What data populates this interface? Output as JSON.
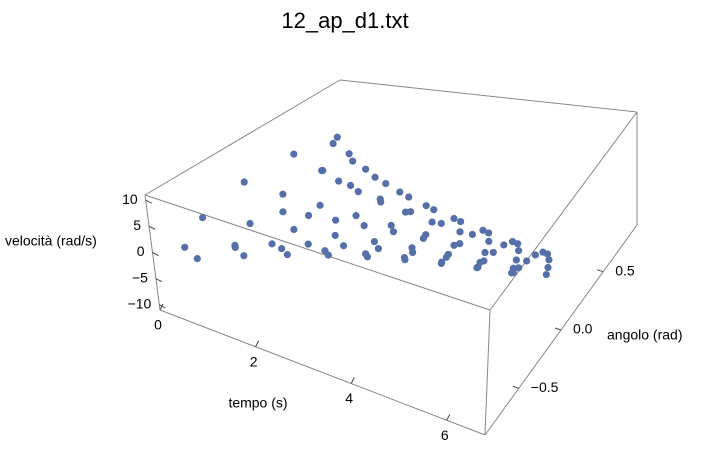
{
  "chart_data": {
    "type": "scatter3d",
    "title": "12_ap_d1.txt",
    "x_label": "tempo (s)",
    "y_label": "angolo (rad)",
    "z_label": "velocità (rad/s)",
    "color": "#5570a8",
    "xlim": [
      0,
      6.8
    ],
    "ylim": [
      -0.9,
      0.9
    ],
    "zlim": [
      -11,
      11
    ],
    "xticks": [
      0,
      2,
      4,
      6
    ],
    "yticks": [
      {
        "value": -0.5,
        "label": "−0.5"
      },
      {
        "value": 0,
        "label": "0.0"
      },
      0.5
    ],
    "zticks": [
      {
        "value": -10,
        "label": "−10"
      },
      {
        "value": -5,
        "label": "−5"
      },
      0,
      5,
      10
    ],
    "x": [
      0,
      0.07,
      0.14,
      0.21,
      0.28,
      0.35,
      0.42,
      0.49,
      0.56,
      0.63,
      0.7,
      0.77,
      0.84,
      0.91,
      0.98,
      1.05,
      1.12,
      1.19,
      1.26,
      1.33,
      1.4,
      1.47,
      1.54,
      1.61,
      1.68,
      1.75,
      1.82,
      1.89,
      1.96,
      2.03,
      2.1,
      2.17,
      2.24,
      2.31,
      2.38,
      2.45,
      2.52,
      2.59,
      2.66,
      2.73,
      2.8,
      2.87,
      2.94,
      3.01,
      3.08,
      3.15,
      3.22,
      3.29,
      3.36,
      3.43,
      3.5,
      3.57,
      3.64,
      3.71,
      3.78,
      3.85,
      3.92,
      3.99,
      4.06,
      4.13,
      4.2,
      4.27,
      4.34,
      4.41,
      4.48,
      4.55,
      4.62,
      4.69,
      4.76,
      4.83,
      4.9,
      4.97,
      5.04,
      5.11,
      5.18,
      5.25,
      5.32,
      5.39,
      5.46,
      5.53,
      5.6,
      5.67,
      5.74,
      5.81,
      5.88,
      5.95,
      6.02,
      6.09,
      6.16,
      6.23,
      6.3,
      6.37,
      6.44,
      6.51
    ],
    "y": [
      0.85,
      0.671,
      0.25,
      -0.244,
      -0.625,
      -0.755,
      -0.596,
      -0.222,
      0.217,
      0.555,
      0.67,
      0.529,
      0.197,
      -0.193,
      -0.493,
      -0.595,
      -0.47,
      -0.175,
      0.171,
      0.438,
      0.528,
      0.417,
      0.155,
      -0.152,
      -0.388,
      -0.469,
      -0.371,
      -0.138,
      0.135,
      0.345,
      0.416,
      0.328,
      0.123,
      -0.12,
      -0.306,
      -0.369,
      -0.292,
      -0.109,
      0.106,
      0.272,
      0.328,
      0.259,
      0.097,
      -0.094,
      -0.241,
      -0.291,
      -0.23,
      -0.086,
      0.084,
      0.214,
      0.258,
      0.204,
      0.076,
      -0.074,
      -0.19,
      -0.229,
      -0.181,
      -0.067,
      0.066,
      0.168,
      0.204,
      0.161,
      0.06,
      -0.059,
      -0.15,
      -0.181,
      -0.143,
      -0.053,
      0.052,
      0.133,
      0.16,
      0.126,
      0.047,
      -0.046,
      -0.117,
      -0.142,
      -0.112,
      -0.042,
      0.041,
      0.104,
      0.126,
      0.1,
      0.037,
      -0.036,
      -0.093,
      -0.112,
      -0.088,
      -0.033,
      0.032,
      0.083,
      0.0995,
      0.0786,
      0.0293,
      -0.0286
    ],
    "z": [
      -0.289,
      -4.61,
      -7.0,
      -6.67,
      -3.87,
      0.26,
      4.09,
      6.22,
      5.93,
      3.43,
      -0.228,
      -3.63,
      -5.52,
      -5.26,
      -3.05,
      0.202,
      3.23,
      4.9,
      4.67,
      2.71,
      -0.18,
      -2.87,
      -4.35,
      -4.15,
      -2.4,
      0.159,
      2.54,
      3.86,
      3.68,
      2.13,
      -0.141,
      -2.25,
      -3.43,
      -3.26,
      -1.89,
      0.125,
      2.0,
      3.04,
      2.9,
      1.68,
      -0.112,
      -1.78,
      -2.7,
      -2.57,
      -1.49,
      0.099,
      1.58,
      2.4,
      2.28,
      1.33,
      -0.088,
      -1.4,
      -2.13,
      -2.02,
      -1.18,
      0.078,
      1.24,
      1.88,
      1.8,
      1.04,
      -0.069,
      -1.11,
      -1.68,
      -1.6,
      -0.926,
      0.062,
      0.983,
      1.49,
      1.42,
      0.825,
      -0.054,
      -0.866,
      -1.32,
      -1.26,
      -0.725,
      0.048,
      0.772,
      1.17,
      1.11,
      0.645,
      -0.043,
      -0.683,
      -1.04,
      -0.986,
      -0.575,
      0.038,
      0.605,
      0.925,
      0.877,
      0.51,
      -0.034,
      -0.54,
      -0.82,
      -0.781
    ]
  }
}
